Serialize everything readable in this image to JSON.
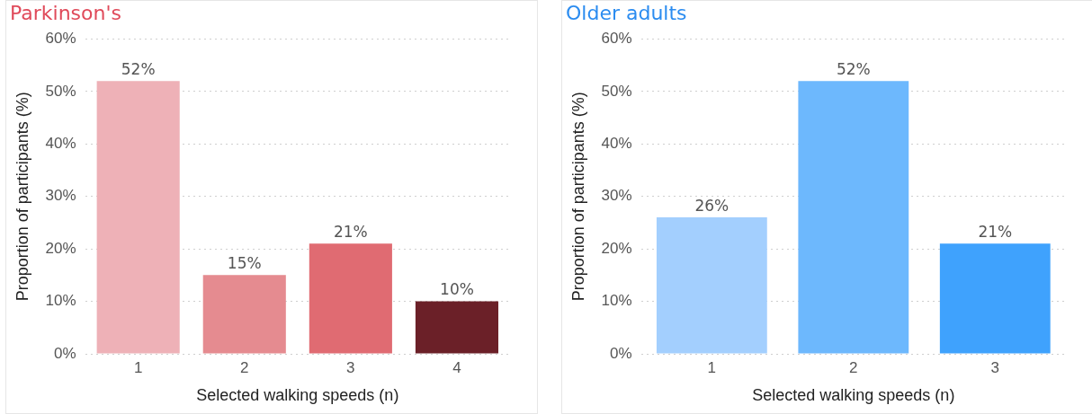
{
  "chart_data": [
    {
      "type": "bar",
      "title": "Parkinson's",
      "xlabel": "Selected walking speeds (n)",
      "ylabel": "Proportion of participants (%)",
      "categories": [
        "1",
        "2",
        "3",
        "4"
      ],
      "values": [
        52,
        15,
        21,
        10
      ],
      "colors": [
        "#eeb1b7",
        "#e58b90",
        "#e06b72",
        "#6b2028"
      ],
      "value_labels": [
        "52%",
        "15%",
        "21%",
        "10%"
      ],
      "ylim": [
        0,
        60
      ],
      "yticks": [
        {
          "value": 0,
          "label": "0%"
        },
        {
          "value": 10,
          "label": "10%"
        },
        {
          "value": 20,
          "label": "20%"
        },
        {
          "value": 30,
          "label": "30%"
        },
        {
          "value": 40,
          "label": "40%"
        },
        {
          "value": 50,
          "label": "50%"
        },
        {
          "value": 60,
          "label": "60%"
        }
      ],
      "grid": "y",
      "legend": false
    },
    {
      "type": "bar",
      "title": "Older adults",
      "xlabel": "Selected walking speeds (n)",
      "ylabel": "Proportion of participants (%)",
      "categories": [
        "1",
        "2",
        "3"
      ],
      "values": [
        26,
        52,
        21
      ],
      "colors": [
        "#a3cffe",
        "#6db8fd",
        "#3fa2fd"
      ],
      "value_labels": [
        "26%",
        "52%",
        "21%"
      ],
      "ylim": [
        0,
        60
      ],
      "yticks": [
        {
          "value": 0,
          "label": "0%"
        },
        {
          "value": 10,
          "label": "10%"
        },
        {
          "value": 20,
          "label": "20%"
        },
        {
          "value": 30,
          "label": "30%"
        },
        {
          "value": 40,
          "label": "40%"
        },
        {
          "value": 50,
          "label": "50%"
        },
        {
          "value": 60,
          "label": "60%"
        }
      ],
      "grid": "y",
      "legend": false
    }
  ]
}
